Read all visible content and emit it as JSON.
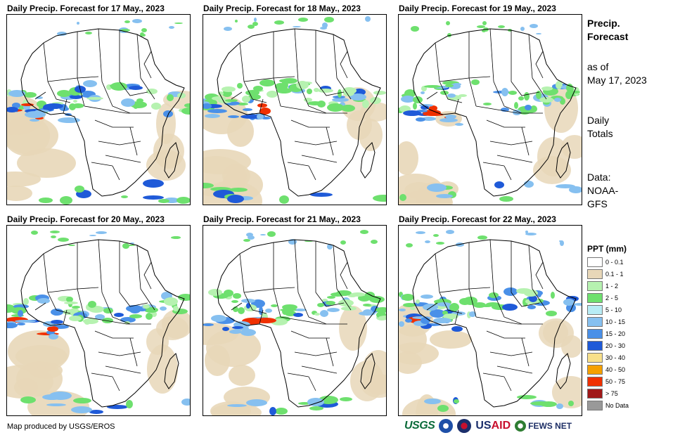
{
  "panels": [
    {
      "title": "Daily Precip. Forecast for 17 May., 2023",
      "day": 17
    },
    {
      "title": "Daily Precip. Forecast for 18 May., 2023",
      "day": 18
    },
    {
      "title": "Daily Precip. Forecast for 19 May., 2023",
      "day": 19
    },
    {
      "title": "Daily Precip. Forecast for 20 May., 2023",
      "day": 20
    },
    {
      "title": "Daily Precip. Forecast for 21 May., 2023",
      "day": 21
    },
    {
      "title": "Daily Precip. Forecast for 22 May., 2023",
      "day": 22
    }
  ],
  "side": {
    "title_line1": "Precip.",
    "title_line2": "Forecast",
    "asof_line1": "as of",
    "asof_line2": "May 17, 2023",
    "totals_line1": "Daily",
    "totals_line2": "Totals",
    "data_line1": "Data:",
    "data_line2": "NOAA-",
    "data_line3": "GFS"
  },
  "legend": {
    "title": "PPT (mm)",
    "items": [
      {
        "label": "0 - 0.1",
        "color": "#ffffff"
      },
      {
        "label": "0.1 - 1",
        "color": "#e8d7b8"
      },
      {
        "label": "1 - 2",
        "color": "#b6f2b0"
      },
      {
        "label": "2 - 5",
        "color": "#6ee06e"
      },
      {
        "label": "5 - 10",
        "color": "#b8ecf5"
      },
      {
        "label": "10 - 15",
        "color": "#86c0f0"
      },
      {
        "label": "15 - 20",
        "color": "#4a90e8"
      },
      {
        "label": "20 - 30",
        "color": "#1f5ad8"
      },
      {
        "label": "30 - 40",
        "color": "#f8e08a"
      },
      {
        "label": "40 - 50",
        "color": "#f5a000"
      },
      {
        "label": "50 - 75",
        "color": "#f03000"
      },
      {
        "label": "> 75",
        "color": "#a01818"
      },
      {
        "label": "No Data",
        "color": "#999999"
      }
    ]
  },
  "footer": {
    "credit": "Map produced by USGS/EROS"
  },
  "logos": {
    "usgs": "USGS",
    "usaid_a": "US",
    "usaid_b": "AID",
    "fews": "FEWS NET"
  }
}
